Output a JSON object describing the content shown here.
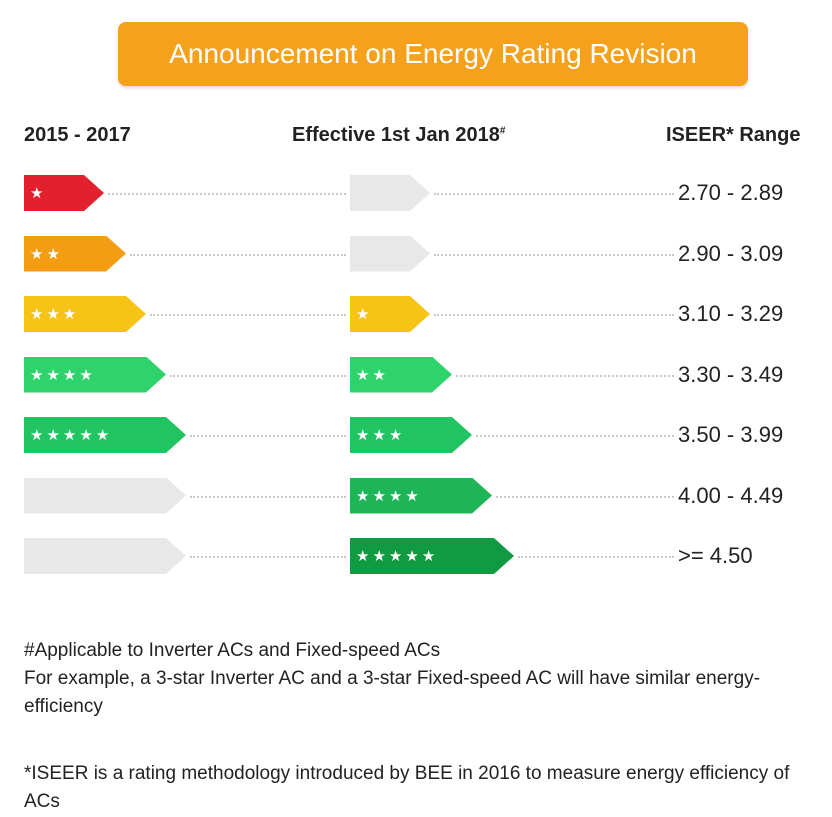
{
  "title": "Announcement on Energy Rating Revision",
  "headers": {
    "old": "2015 - 2017",
    "new": "Effective 1st Jan 2018",
    "new_mark": "#",
    "range": "ISEER* Range"
  },
  "rows": [
    {
      "old_stars": 1,
      "old_color": "#e3202e",
      "new_stars": 0,
      "new_color": "#e8e8e8",
      "range": "2.70 - 2.89"
    },
    {
      "old_stars": 2,
      "old_color": "#f59d12",
      "new_stars": 0,
      "new_color": "#e8e8e8",
      "range": "2.90 - 3.09"
    },
    {
      "old_stars": 3,
      "old_color": "#f7c315",
      "new_stars": 1,
      "new_color": "#f7c315",
      "range": "3.10 - 3.29"
    },
    {
      "old_stars": 4,
      "old_color": "#2fd36c",
      "new_stars": 2,
      "new_color": "#2fd36c",
      "range": "3.30 - 3.49"
    },
    {
      "old_stars": 5,
      "old_color": "#20c460",
      "new_stars": 3,
      "new_color": "#20c460",
      "range": "3.50 - 3.99"
    },
    {
      "old_stars": 0,
      "old_color": "#e8e8e8",
      "new_stars": 4,
      "new_color": "#1db556",
      "range": "4.00 - 4.49"
    },
    {
      "old_stars": 0,
      "old_color": "#e8e8e8",
      "new_stars": 5,
      "new_color": "#109a42",
      "range": ">= 4.50"
    }
  ],
  "notes": {
    "applicable": "#Applicable to Inverter ACs and Fixed-speed ACs",
    "example": "For example, a 3-star Inverter AC and a 3-star Fixed-speed AC will have similar energy-efficiency",
    "iseer": "*ISEER is a rating methodology introduced by BEE in 2016 to measure energy efficiency of ACs"
  }
}
